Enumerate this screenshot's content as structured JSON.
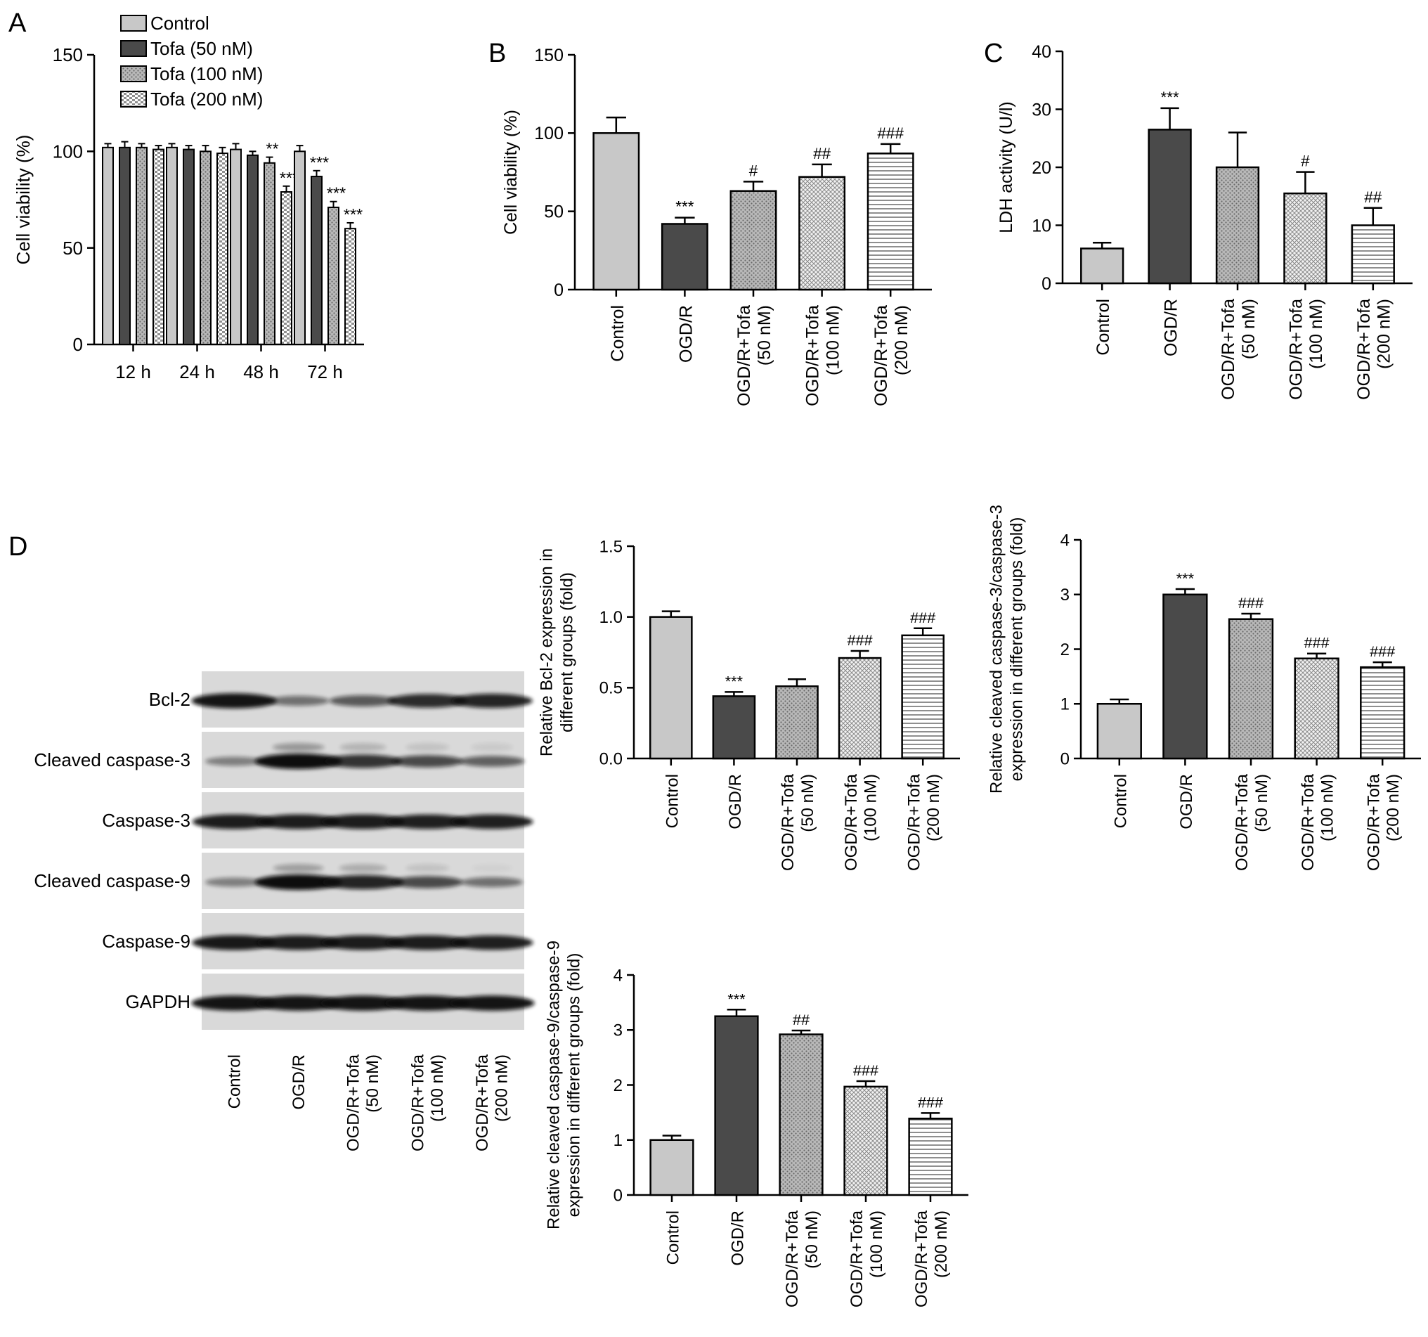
{
  "colors": {
    "control": "#c8c8c8",
    "ogdr": "#4a4a4a",
    "dose_50": "#b9b9b9",
    "dose_100": "#d8d8d8",
    "dose_200": "#ffffff",
    "axis": "#000000",
    "blot_background": "#d9d9d9",
    "blot_band": "#111111"
  },
  "panel_labels": [
    "A",
    "B",
    "C",
    "D"
  ],
  "chart_data": [
    {
      "id": "A",
      "type": "bar",
      "categories": [
        "12 h",
        "24 h",
        "48 h",
        "72 h"
      ],
      "ylabel": "Cell viability (%)",
      "ylim": [
        0,
        150
      ],
      "yticks": [
        0,
        50,
        100,
        150
      ],
      "legend_position": "top-left",
      "grid": false,
      "series": [
        {
          "name": "Control",
          "fill": "control",
          "values": [
            102,
            102,
            101,
            100
          ],
          "errors": [
            2,
            2,
            3,
            3
          ],
          "marks": [
            "",
            "",
            "",
            ""
          ]
        },
        {
          "name": "Tofa (50 nM)",
          "fill": "dose_50",
          "values": [
            102,
            101,
            98,
            87
          ],
          "errors": [
            3,
            2,
            2,
            3
          ],
          "marks": [
            "",
            "",
            "",
            "***"
          ]
        },
        {
          "name": "Tofa (100 nM)",
          "fill": "dose_100",
          "values": [
            102,
            100,
            94,
            71
          ],
          "errors": [
            2,
            3,
            3,
            3
          ],
          "marks": [
            "",
            "",
            "**",
            "***"
          ]
        },
        {
          "name": "Tofa (200 nM)",
          "fill": "dose_200",
          "values": [
            101,
            99,
            79,
            60
          ],
          "errors": [
            2,
            3,
            3,
            3
          ],
          "marks": [
            "",
            "",
            "***",
            "***"
          ]
        }
      ]
    },
    {
      "id": "B",
      "type": "bar",
      "categories": [
        "Control",
        "OGD/R",
        "OGD/R+Tofa\n(50 nM)",
        "OGD/R+Tofa\n(100 nM)",
        "OGD/R+Tofa\n(200 nM)"
      ],
      "ylabel": "Cell viability (%)",
      "ylim": [
        0,
        150
      ],
      "yticks": [
        0,
        50,
        100,
        150
      ],
      "values": [
        100,
        42,
        63,
        72,
        87
      ],
      "errors": [
        10,
        4,
        6,
        8,
        6
      ],
      "marks": [
        "",
        "***",
        "#",
        "##",
        "###"
      ],
      "grid": false
    },
    {
      "id": "C",
      "type": "bar",
      "categories": [
        "Control",
        "OGD/R",
        "OGD/R+Tofa\n(50 nM)",
        "OGD/R+Tofa\n(100 nM)",
        "OGD/R+Tofa\n(200 nM)"
      ],
      "ylabel": "LDH activity (U/l)",
      "ylim": [
        0,
        40
      ],
      "yticks": [
        0,
        10,
        20,
        30,
        40
      ],
      "values": [
        6,
        26.5,
        20,
        15.5,
        10
      ],
      "errors": [
        1,
        3.7,
        6,
        3.7,
        3
      ],
      "marks": [
        "",
        "***",
        "",
        "#",
        "##"
      ],
      "grid": false
    },
    {
      "id": "D1",
      "type": "bar",
      "categories": [
        "Control",
        "OGD/R",
        "OGD/R+Tofa\n(50 nM)",
        "OGD/R+Tofa\n(100 nM)",
        "OGD/R+Tofa\n(200 nM)"
      ],
      "ylabel": "Relative Bcl-2 expression in\ndifferent groups (fold)",
      "ylim": [
        0,
        1.5
      ],
      "yticks": [
        "0.0",
        "0.5",
        "1.0",
        "1.5"
      ],
      "values": [
        1.0,
        0.44,
        0.51,
        0.71,
        0.87
      ],
      "errors": [
        0.04,
        0.03,
        0.05,
        0.05,
        0.05
      ],
      "marks": [
        "",
        "***",
        "",
        "###",
        "###"
      ],
      "grid": false
    },
    {
      "id": "D2",
      "type": "bar",
      "categories": [
        "Control",
        "OGD/R",
        "OGD/R+Tofa\n(50 nM)",
        "OGD/R+Tofa\n(100 nM)",
        "OGD/R+Tofa\n(200 nM)"
      ],
      "ylabel": "Relative cleaved caspase-3/caspase-3\nexpression in different groups (fold)",
      "ylim": [
        0,
        4
      ],
      "yticks": [
        0,
        1,
        2,
        3,
        4
      ],
      "values": [
        1.0,
        3.0,
        2.55,
        1.83,
        1.67
      ],
      "errors": [
        0.08,
        0.1,
        0.1,
        0.09,
        0.09
      ],
      "marks": [
        "",
        "***",
        "###",
        "###",
        "###"
      ],
      "grid": false
    },
    {
      "id": "D3",
      "type": "bar",
      "categories": [
        "Control",
        "OGD/R",
        "OGD/R+Tofa\n(50 nM)",
        "OGD/R+Tofa\n(100 nM)",
        "OGD/R+Tofa\n(200 nM)"
      ],
      "ylabel": "Relative cleaved caspase-9/caspase-9\nexpression in different groups (fold)",
      "ylim": [
        0,
        4
      ],
      "yticks": [
        0,
        1,
        2,
        3,
        4
      ],
      "values": [
        1.0,
        3.25,
        2.92,
        1.97,
        1.39
      ],
      "errors": [
        0.08,
        0.12,
        0.07,
        0.1,
        0.1
      ],
      "marks": [
        "",
        "***",
        "##",
        "###",
        "###"
      ],
      "grid": false
    }
  ],
  "blot": {
    "rows": [
      {
        "label": "Bcl-2",
        "bands": [
          0.95,
          0.35,
          0.5,
          0.8,
          0.85
        ],
        "upper": [
          0,
          0,
          0,
          0,
          0
        ]
      },
      {
        "label": "Cleaved caspase-3",
        "bands": [
          0.25,
          1.0,
          0.75,
          0.6,
          0.45
        ],
        "upper": [
          0,
          0.45,
          0.25,
          0.15,
          0.1
        ]
      },
      {
        "label": "Caspase-3",
        "bands": [
          0.9,
          0.9,
          0.9,
          0.88,
          0.88
        ],
        "upper": [
          0,
          0,
          0,
          0,
          0
        ]
      },
      {
        "label": "Cleaved caspase-9",
        "bands": [
          0.25,
          1.0,
          0.85,
          0.6,
          0.35
        ],
        "upper": [
          0,
          0.4,
          0.3,
          0.15,
          0.05
        ]
      },
      {
        "label": "Caspase-9",
        "bands": [
          0.92,
          0.9,
          0.9,
          0.9,
          0.88
        ],
        "upper": [
          0,
          0,
          0,
          0,
          0
        ]
      },
      {
        "label": "GAPDH",
        "bands": [
          0.95,
          0.95,
          0.95,
          0.95,
          0.95
        ],
        "upper": [
          0,
          0,
          0,
          0,
          0
        ]
      }
    ],
    "lanes": [
      "Control",
      "OGD/R",
      "OGD/R+Tofa\n(50 nM)",
      "OGD/R+Tofa\n(100 nM)",
      "OGD/R+Tofa\n(200 nM)"
    ]
  }
}
